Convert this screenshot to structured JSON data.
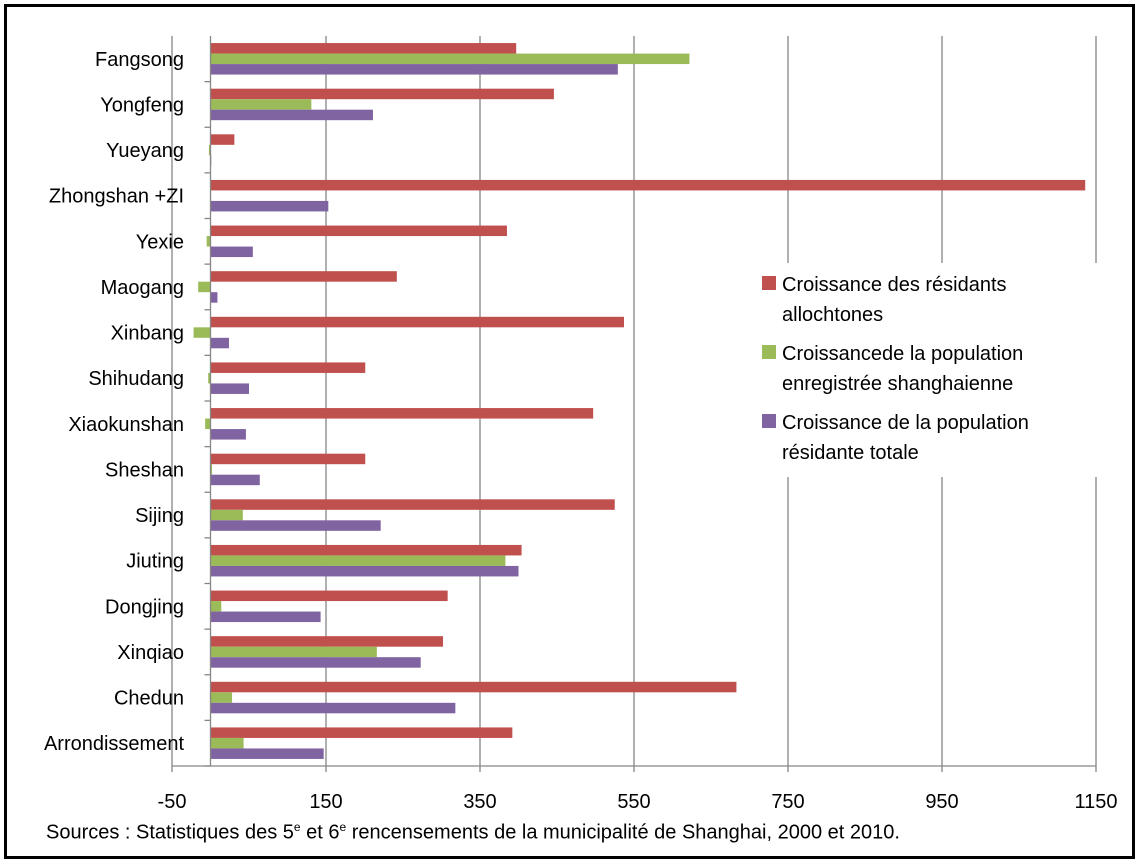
{
  "chart_data": {
    "type": "bar",
    "orientation": "horizontal",
    "categories": [
      "Arrondissement",
      "Chedun",
      "Xinqiao",
      "Dongjing",
      "Jiuting",
      "Sijing",
      "Sheshan",
      "Xiaokunshan",
      "Shihudang",
      "Xinbang",
      "Maogang",
      "Yexie",
      "Zhongshan +ZI",
      "Yueyang",
      "Yongfeng",
      "Fangsong"
    ],
    "series": [
      {
        "name": "Croissance des résidants allochtones",
        "color": "#c0504d",
        "values": [
          392,
          683,
          302,
          308,
          404,
          525,
          201,
          497,
          201,
          537,
          242,
          385,
          1136,
          31,
          446,
          397
        ]
      },
      {
        "name": "Croissancede la population enregistrée shanghaienne",
        "color": "#9bbb59",
        "values": [
          43,
          28,
          216,
          14,
          383,
          42,
          2,
          -7,
          -3,
          -22,
          -16,
          -5,
          0,
          -2,
          131,
          622
        ]
      },
      {
        "name": "Croissance de la population résidante totale",
        "color": "#8064a2",
        "values": [
          147,
          318,
          273,
          143,
          400,
          221,
          64,
          46,
          50,
          24,
          9,
          55,
          153,
          1,
          211,
          529
        ]
      }
    ],
    "xlim": [
      -50,
      1150
    ],
    "xticks": [
      "-50",
      "150",
      "350",
      "550",
      "750",
      "950",
      "1150"
    ],
    "grid": true,
    "legend": "right"
  },
  "source": {
    "prefix": "Sources :  Statistiques des 5",
    "sup1": "e",
    "middle": " et 6",
    "sup2": "e",
    "suffix": " rencensements de la municipalité de Shanghai, 2000 et 2010."
  }
}
